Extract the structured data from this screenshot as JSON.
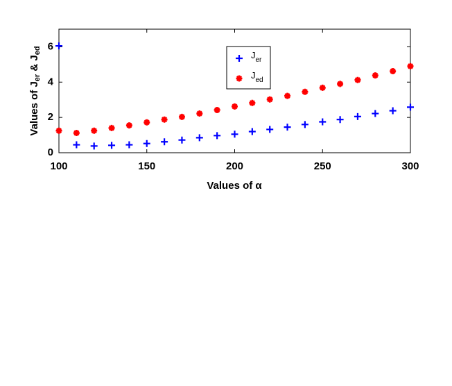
{
  "chart_data": {
    "type": "scatter",
    "xlabel": "Values of α",
    "ylabel": [
      "Values of J",
      "er",
      " & J",
      "ed"
    ],
    "x": [
      100,
      110,
      120,
      130,
      140,
      150,
      160,
      170,
      180,
      190,
      200,
      210,
      220,
      230,
      240,
      250,
      260,
      270,
      280,
      290,
      300
    ],
    "series": [
      {
        "name": "J",
        "subscript": "er",
        "color": "#0000ff",
        "marker": "plus",
        "values": [
          6.05,
          0.45,
          0.38,
          0.42,
          0.45,
          0.52,
          0.62,
          0.72,
          0.85,
          0.97,
          1.05,
          1.2,
          1.32,
          1.45,
          1.6,
          1.75,
          1.88,
          2.05,
          2.22,
          2.38,
          2.58
        ]
      },
      {
        "name": "J",
        "subscript": "ed",
        "color": "#ff0000",
        "marker": "star",
        "values": [
          1.25,
          1.12,
          1.25,
          1.4,
          1.55,
          1.72,
          1.88,
          2.03,
          2.22,
          2.42,
          2.62,
          2.82,
          3.02,
          3.22,
          3.45,
          3.68,
          3.9,
          4.12,
          4.38,
          4.62,
          4.9
        ]
      }
    ],
    "xlim": [
      100,
      300
    ],
    "xticks": [
      100,
      150,
      200,
      250,
      300
    ],
    "ylim": [
      0,
      7
    ],
    "yticks": [
      0,
      2,
      4,
      6
    ]
  }
}
